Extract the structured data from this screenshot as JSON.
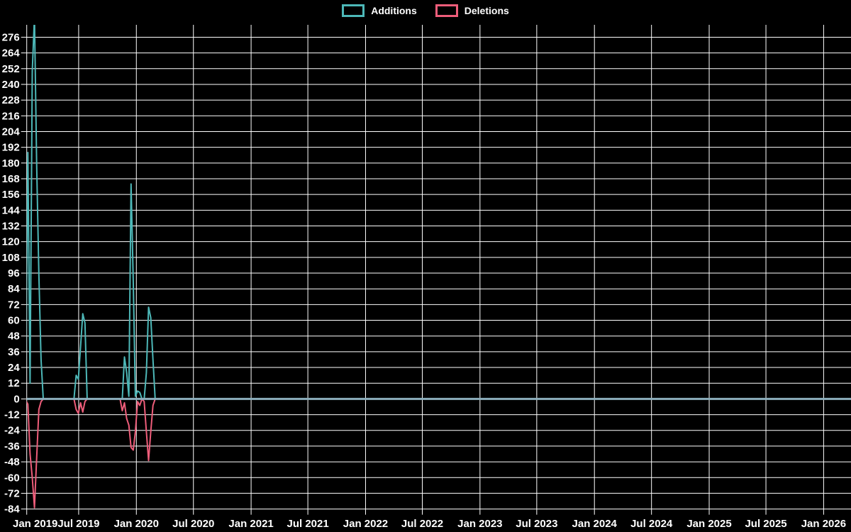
{
  "legend": {
    "items": [
      {
        "label": "Additions",
        "color": "#4db8b8"
      },
      {
        "label": "Deletions",
        "color": "#ee5d7a"
      }
    ]
  },
  "chart_data": {
    "type": "line",
    "title": "",
    "background": "#000000",
    "grid_color": "#ffffff",
    "text_color": "#ffffff",
    "zero_line_color": "#8caebc",
    "legend_position": "top-center",
    "grid": "on",
    "x_axis": {
      "unit": "days_since_2019-01-01",
      "range_days": [
        15,
        2645
      ],
      "ticks": [
        {
          "label": "Jan 2019",
          "day": 0
        },
        {
          "label": "Jul 2019",
          "day": 181
        },
        {
          "label": "Jan 2020",
          "day": 365
        },
        {
          "label": "Jul 2020",
          "day": 547
        },
        {
          "label": "Jan 2021",
          "day": 731
        },
        {
          "label": "Jul 2021",
          "day": 912
        },
        {
          "label": "Jan 2022",
          "day": 1096
        },
        {
          "label": "Jul 2022",
          "day": 1277
        },
        {
          "label": "Jan 2023",
          "day": 1461
        },
        {
          "label": "Jul 2023",
          "day": 1642
        },
        {
          "label": "Jan 2024",
          "day": 1826
        },
        {
          "label": "Jul 2024",
          "day": 2008
        },
        {
          "label": "Jan 2025",
          "day": 2192
        },
        {
          "label": "Jul 2025",
          "day": 2373
        },
        {
          "label": "Jan 2026",
          "day": 2557
        }
      ]
    },
    "y_axis": {
      "ylim": [
        -84,
        285
      ],
      "tick_step": 12,
      "tick_values": [
        276,
        264,
        252,
        240,
        228,
        216,
        204,
        192,
        180,
        168,
        156,
        144,
        132,
        120,
        108,
        96,
        84,
        72,
        60,
        48,
        36,
        24,
        12,
        0,
        -12,
        -24,
        -36,
        -48,
        -60,
        -72,
        -84
      ]
    },
    "series": [
      {
        "name": "Additions",
        "color": "#4db8b8",
        "points": [
          [
            5,
            0
          ],
          [
            12,
            2
          ],
          [
            19,
            188
          ],
          [
            26,
            12
          ],
          [
            33,
            250
          ],
          [
            40,
            292
          ],
          [
            47,
            179
          ],
          [
            54,
            95
          ],
          [
            61,
            30
          ],
          [
            68,
            0
          ],
          [
            166,
            0
          ],
          [
            173,
            18
          ],
          [
            180,
            15
          ],
          [
            187,
            40
          ],
          [
            194,
            65
          ],
          [
            201,
            58
          ],
          [
            208,
            0
          ],
          [
            313,
            0
          ],
          [
            320,
            0
          ],
          [
            327,
            32
          ],
          [
            334,
            20
          ],
          [
            341,
            2
          ],
          [
            348,
            164
          ],
          [
            355,
            90
          ],
          [
            362,
            2
          ],
          [
            369,
            6
          ],
          [
            376,
            5
          ],
          [
            383,
            0
          ],
          [
            390,
            0
          ],
          [
            397,
            20
          ],
          [
            404,
            70
          ],
          [
            411,
            62
          ],
          [
            418,
            30
          ],
          [
            425,
            0
          ],
          [
            2645,
            0
          ]
        ]
      },
      {
        "name": "Deletions",
        "color": "#ee5d7a",
        "points": [
          [
            5,
            0
          ],
          [
            12,
            -1
          ],
          [
            19,
            -4
          ],
          [
            26,
            -42
          ],
          [
            33,
            -60
          ],
          [
            40,
            -83
          ],
          [
            47,
            -45
          ],
          [
            54,
            -8
          ],
          [
            61,
            -2
          ],
          [
            68,
            0
          ],
          [
            166,
            0
          ],
          [
            173,
            -8
          ],
          [
            180,
            -11
          ],
          [
            187,
            -3
          ],
          [
            194,
            -10
          ],
          [
            201,
            -2
          ],
          [
            208,
            0
          ],
          [
            313,
            0
          ],
          [
            320,
            -9
          ],
          [
            327,
            -3
          ],
          [
            334,
            -15
          ],
          [
            341,
            -20
          ],
          [
            348,
            -37
          ],
          [
            355,
            -39
          ],
          [
            362,
            -25
          ],
          [
            369,
            -2
          ],
          [
            376,
            -5
          ],
          [
            383,
            0
          ],
          [
            390,
            -2
          ],
          [
            397,
            -25
          ],
          [
            404,
            -47
          ],
          [
            411,
            -25
          ],
          [
            418,
            -5
          ],
          [
            425,
            0
          ],
          [
            2645,
            0
          ]
        ]
      }
    ]
  }
}
